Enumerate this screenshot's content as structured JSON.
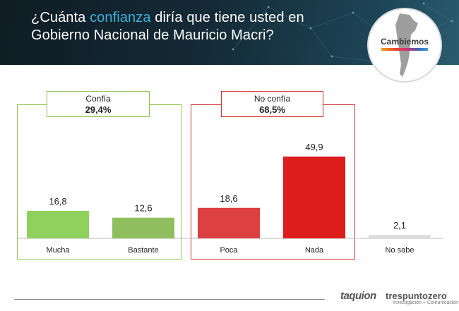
{
  "header": {
    "title_pre": "¿Cuánta ",
    "title_highlight": "confianza",
    "title_post": " diría que tiene usted en",
    "title_line2": "Gobierno Nacional de Mauricio Macri?",
    "logo_text": "Cambiemos"
  },
  "groups": [
    {
      "name": "Confía",
      "value": "29,4%"
    },
    {
      "name": "No confía",
      "value": "68,5%"
    }
  ],
  "chart_data": {
    "type": "bar",
    "categories": [
      "Mucha",
      "Bastante",
      "Poca",
      "Nada",
      "No sabe"
    ],
    "values": [
      16.8,
      12.6,
      18.6,
      49.9,
      2.1
    ],
    "value_labels": [
      "16,8",
      "12,6",
      "18,6",
      "49,9",
      "2,1"
    ],
    "colors": [
      "#8fd15a",
      "#8fbe5e",
      "#dc4040",
      "#dd1c1c",
      "#dddddd"
    ],
    "group_colors": {
      "confia": "#8bc34a",
      "no_confia": "#d32f2f"
    },
    "xlabel": "",
    "ylabel": "",
    "ylim": [
      0,
      55
    ],
    "grid": false
  },
  "footer": {
    "brand1": "taquion",
    "brand2": "trespuntozero",
    "brand2_sub": "Investigación + Comunicación"
  }
}
